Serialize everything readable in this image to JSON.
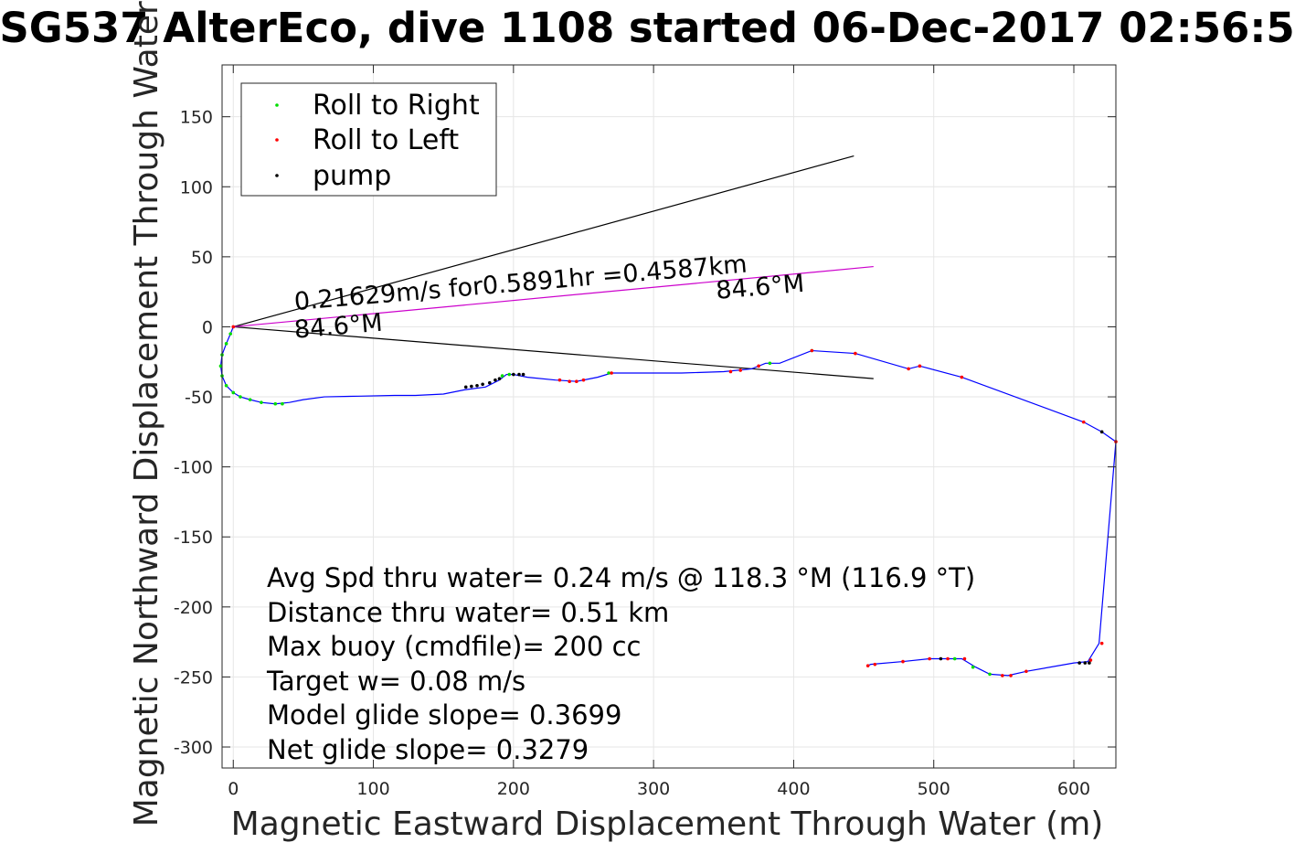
{
  "chart_data": {
    "type": "scatter",
    "title": "SG537 AlterEco, dive 1108 started 06-Dec-2017 02:56:5",
    "xlabel": "Magnetic Eastward Displacement Through Water (m)",
    "ylabel": "Magnetic Northward Displacement Through Water (",
    "xlim": [
      -8,
      630
    ],
    "ylim": [
      -315,
      187
    ],
    "xticks": [
      0,
      100,
      200,
      300,
      400,
      500,
      600
    ],
    "yticks": [
      150,
      100,
      50,
      0,
      -50,
      -100,
      -150,
      -200,
      -250,
      -300
    ],
    "grid": true,
    "legend_placement": "top-left",
    "legend": [
      {
        "label": "Roll to Right",
        "color": "#00dd00"
      },
      {
        "label": "Roll to Left",
        "color": "#ff0000"
      },
      {
        "label": "pump",
        "color": "#000000"
      }
    ],
    "track": {
      "color": "#0000ff",
      "points": [
        [
          0,
          0
        ],
        [
          -2,
          -5
        ],
        [
          -5,
          -12
        ],
        [
          -8,
          -20
        ],
        [
          -9,
          -28
        ],
        [
          -8,
          -35
        ],
        [
          -5,
          -42
        ],
        [
          0,
          -47
        ],
        [
          5,
          -50
        ],
        [
          12,
          -52
        ],
        [
          20,
          -54
        ],
        [
          30,
          -55
        ],
        [
          40,
          -54
        ],
        [
          50,
          -52
        ],
        [
          65,
          -50
        ],
        [
          90,
          -49.5
        ],
        [
          115,
          -49
        ],
        [
          130,
          -49
        ],
        [
          150,
          -48
        ],
        [
          165,
          -45
        ],
        [
          180,
          -43
        ],
        [
          190,
          -38
        ],
        [
          195,
          -34
        ],
        [
          200,
          -34
        ],
        [
          210,
          -36
        ],
        [
          230,
          -38
        ],
        [
          245,
          -39
        ],
        [
          260,
          -36
        ],
        [
          270,
          -33
        ],
        [
          290,
          -33
        ],
        [
          320,
          -33
        ],
        [
          350,
          -32
        ],
        [
          370,
          -30
        ],
        [
          380,
          -26
        ],
        [
          390,
          -26
        ],
        [
          413,
          -17
        ],
        [
          444,
          -19
        ],
        [
          482,
          -30
        ],
        [
          490,
          -28
        ],
        [
          520,
          -36
        ],
        [
          607,
          -68
        ],
        [
          620,
          -75
        ],
        [
          630,
          -82
        ],
        [
          618,
          -226
        ],
        [
          610,
          -239
        ],
        [
          600,
          -240
        ],
        [
          566,
          -246
        ],
        [
          553,
          -249
        ],
        [
          540,
          -248
        ],
        [
          530,
          -243
        ],
        [
          520,
          -237
        ],
        [
          510,
          -237
        ],
        [
          497,
          -237
        ],
        [
          478,
          -239
        ],
        [
          455,
          -241
        ],
        [
          453,
          -242
        ]
      ]
    },
    "roll_right_points": [
      [
        -2,
        -5
      ],
      [
        -5,
        -12
      ],
      [
        -8,
        -20
      ],
      [
        -9,
        -28
      ],
      [
        -8,
        -35
      ],
      [
        -5,
        -42
      ],
      [
        0,
        -47
      ],
      [
        5,
        -50
      ],
      [
        12,
        -52
      ],
      [
        20,
        -54
      ],
      [
        30,
        -55
      ],
      [
        35,
        -55
      ],
      [
        192,
        -35
      ],
      [
        197,
        -34
      ],
      [
        268,
        -33
      ],
      [
        383,
        -26
      ],
      [
        413,
        -17
      ],
      [
        540,
        -248
      ],
      [
        528,
        -243
      ],
      [
        515,
        -237
      ]
    ],
    "roll_left_points": [
      [
        0,
        0
      ],
      [
        233,
        -38
      ],
      [
        240,
        -39
      ],
      [
        245,
        -39
      ],
      [
        250,
        -38
      ],
      [
        270,
        -33
      ],
      [
        355,
        -32
      ],
      [
        362,
        -31
      ],
      [
        375,
        -28
      ],
      [
        413,
        -17
      ],
      [
        444,
        -19
      ],
      [
        482,
        -30
      ],
      [
        490,
        -28
      ],
      [
        520,
        -36
      ],
      [
        607,
        -68
      ],
      [
        630,
        -82
      ],
      [
        620,
        -226
      ],
      [
        612,
        -238
      ],
      [
        566,
        -246
      ],
      [
        555,
        -249
      ],
      [
        549,
        -249
      ],
      [
        522,
        -237
      ],
      [
        510,
        -237
      ],
      [
        497,
        -237
      ],
      [
        478,
        -239
      ],
      [
        458,
        -241
      ],
      [
        453,
        -242
      ]
    ],
    "pump_points": [
      [
        166,
        -43
      ],
      [
        170,
        -42.5
      ],
      [
        174,
        -42
      ],
      [
        178,
        -41
      ],
      [
        183,
        -40
      ],
      [
        187,
        -38
      ],
      [
        190,
        -37
      ],
      [
        200,
        -34
      ],
      [
        204,
        -34
      ],
      [
        207,
        -34
      ],
      [
        620,
        -75
      ],
      [
        604,
        -240
      ],
      [
        608,
        -240
      ],
      [
        611,
        -240
      ],
      [
        505,
        -237
      ]
    ],
    "heading_lines": [
      {
        "color": "#000000",
        "points": [
          [
            0,
            0
          ],
          [
            443,
            122
          ]
        ]
      },
      {
        "color": "#000000",
        "points": [
          [
            0,
            0
          ],
          [
            457,
            -37
          ]
        ]
      },
      {
        "color": "#cc00cc",
        "points": [
          [
            0,
            0
          ],
          [
            457,
            43
          ]
        ]
      }
    ],
    "annotations": [
      {
        "text": "0.21629m/s for0.5891hr =0.4587km",
        "x": 44,
        "y": 12,
        "angle_deg": -4.8
      },
      {
        "text": "84.6°M",
        "x": 345,
        "y": 20,
        "angle_deg": -4.8
      },
      {
        "text": "84.6°M",
        "x": 44,
        "y": -8,
        "angle_deg": -4.8
      }
    ],
    "stats": [
      "Avg Spd thru water=  0.24 m/s @ 118.3 °M (116.9 °T)",
      "Distance thru water=  0.51 km",
      "Max buoy (cmdfile)= 200 cc",
      "Target w= 0.08 m/s",
      "Model glide slope= 0.3699",
      "Net glide slope= 0.3279"
    ]
  }
}
